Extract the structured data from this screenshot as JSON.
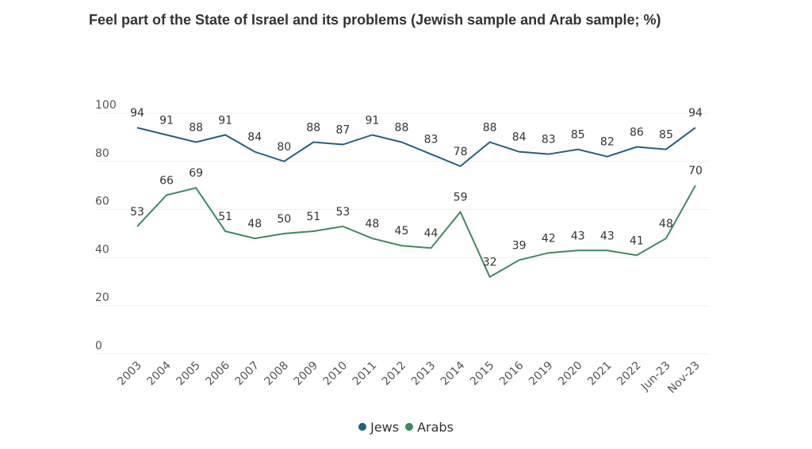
{
  "chart_data": {
    "type": "line",
    "title": "Feel part of the State of Israel and its problems (Jewish sample and Arab sample; %)",
    "categories": [
      "2003",
      "2004",
      "2005",
      "2006",
      "2007",
      "2008",
      "2009",
      "2010",
      "2011",
      "2012",
      "2013",
      "2014",
      "2015",
      "2016",
      "2019",
      "2020",
      "2021",
      "2022",
      "Jun-23",
      "Nov-23"
    ],
    "series": [
      {
        "name": "Jews",
        "color": "#21607f",
        "values": [
          94,
          91,
          88,
          91,
          84,
          80,
          88,
          87,
          91,
          88,
          83,
          78,
          88,
          84,
          83,
          85,
          82,
          86,
          85,
          94
        ]
      },
      {
        "name": "Arabs",
        "color": "#3b8a5f",
        "values": [
          53,
          66,
          69,
          51,
          48,
          50,
          51,
          53,
          48,
          45,
          44,
          59,
          32,
          39,
          42,
          43,
          43,
          41,
          48,
          70
        ]
      }
    ],
    "ylim": [
      0,
      100
    ],
    "yticks": [
      0,
      20,
      40,
      60,
      80,
      100
    ],
    "grid": true,
    "legend": "bottom"
  }
}
